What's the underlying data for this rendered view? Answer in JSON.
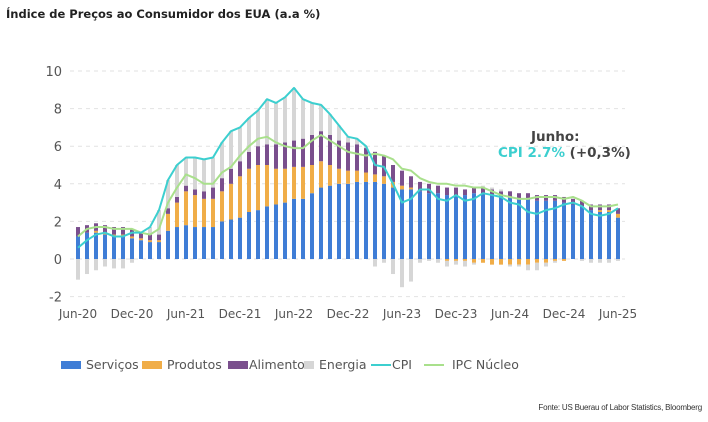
{
  "title": "Índice de Preços ao Consumidor dos EUA (a.a %)",
  "source": "Fonte: US Buerau of Labor Statistics, Bloomberg",
  "annotation": {
    "line1": "Junho:",
    "cpi": "CPI 2.7%",
    "change": "(+0,3%)"
  },
  "colors": {
    "services": "#3f7dd6",
    "products": "#f0ad48",
    "food": "#7a4f8d",
    "energy": "#d6d6d6",
    "cpi": "#3ccfcf",
    "core": "#a9e08c"
  },
  "legend": [
    "Serviços",
    "Produtos",
    "Alimentos",
    "Energia",
    "CPI",
    "IPC Núcleo"
  ],
  "chart_data": {
    "type": "bar",
    "stacked": true,
    "x_start": "Jun-20",
    "x_end": "Jun-25",
    "x_frequency": "monthly",
    "x_tick_labels": [
      "Jun-20",
      "Dec-20",
      "Jun-21",
      "Dec-21",
      "Jun-22",
      "Dec-22",
      "Jun-23",
      "Dec-23",
      "Jun-24",
      "Dec-24",
      "Jun-25"
    ],
    "y_ticks": [
      -2,
      0,
      2,
      4,
      6,
      8,
      10
    ],
    "ylim": [
      -2,
      10
    ],
    "grid": "horizontal dashed",
    "legend_position": "bottom",
    "series": [
      {
        "name": "Serviços",
        "type": "bar",
        "values": [
          1.2,
          1.4,
          1.4,
          1.3,
          1.2,
          1.2,
          1.1,
          1.0,
          0.9,
          0.9,
          1.5,
          1.7,
          1.8,
          1.7,
          1.7,
          1.7,
          2.0,
          2.1,
          2.2,
          2.5,
          2.6,
          2.8,
          2.9,
          3.0,
          3.2,
          3.2,
          3.5,
          3.8,
          3.9,
          4.0,
          4.0,
          4.1,
          4.1,
          4.1,
          4.0,
          3.8,
          3.7,
          3.7,
          3.6,
          3.5,
          3.5,
          3.4,
          3.4,
          3.4,
          3.5,
          3.5,
          3.4,
          3.3,
          3.3,
          3.2,
          3.2,
          3.1,
          3.1,
          3.1,
          3.0,
          2.9,
          2.8,
          2.6,
          2.5,
          2.5,
          2.2
        ]
      },
      {
        "name": "Produtos",
        "type": "bar",
        "values": [
          0.0,
          0.0,
          0.1,
          0.1,
          0.1,
          0.1,
          0.1,
          0.1,
          0.1,
          0.1,
          0.9,
          1.3,
          1.8,
          1.7,
          1.5,
          1.5,
          1.6,
          1.9,
          2.2,
          2.3,
          2.4,
          2.2,
          1.9,
          1.8,
          1.7,
          1.7,
          1.5,
          1.4,
          1.1,
          0.8,
          0.7,
          0.6,
          0.5,
          0.4,
          0.4,
          0.3,
          0.2,
          0.1,
          0.0,
          0.0,
          0.0,
          -0.1,
          -0.1,
          -0.1,
          -0.2,
          -0.2,
          -0.3,
          -0.3,
          -0.3,
          -0.3,
          -0.3,
          -0.2,
          -0.2,
          -0.1,
          -0.1,
          0.0,
          0.0,
          0.0,
          0.1,
          0.1,
          0.2
        ]
      },
      {
        "name": "Alimentos",
        "type": "bar",
        "values": [
          0.5,
          0.4,
          0.4,
          0.4,
          0.4,
          0.4,
          0.4,
          0.3,
          0.3,
          0.3,
          0.3,
          0.3,
          0.3,
          0.3,
          0.4,
          0.6,
          0.7,
          0.8,
          0.8,
          0.9,
          1.0,
          1.1,
          1.3,
          1.4,
          1.4,
          1.5,
          1.6,
          1.6,
          1.6,
          1.5,
          1.5,
          1.4,
          1.3,
          1.2,
          1.1,
          0.9,
          0.8,
          0.6,
          0.5,
          0.5,
          0.4,
          0.4,
          0.4,
          0.3,
          0.3,
          0.3,
          0.3,
          0.3,
          0.3,
          0.3,
          0.3,
          0.3,
          0.3,
          0.3,
          0.3,
          0.3,
          0.3,
          0.3,
          0.3,
          0.3,
          0.3
        ]
      },
      {
        "name": "Energia",
        "type": "bar",
        "values": [
          -1.1,
          -0.8,
          -0.6,
          -0.4,
          -0.5,
          -0.5,
          -0.2,
          0.0,
          0.4,
          1.3,
          1.5,
          1.7,
          1.5,
          1.7,
          1.7,
          1.6,
          1.9,
          2.0,
          1.8,
          1.8,
          1.9,
          2.4,
          2.2,
          2.4,
          2.8,
          2.1,
          1.7,
          1.4,
          1.1,
          0.8,
          0.3,
          0.3,
          0.1,
          -0.4,
          -0.2,
          -0.8,
          -1.5,
          -1.2,
          -0.2,
          -0.1,
          -0.2,
          -0.3,
          -0.2,
          -0.3,
          -0.1,
          0.1,
          0.1,
          0.1,
          -0.1,
          -0.1,
          -0.3,
          -0.4,
          -0.2,
          -0.1,
          0.0,
          0.0,
          -0.1,
          -0.2,
          -0.2,
          -0.2,
          -0.1
        ]
      },
      {
        "name": "CPI",
        "type": "line",
        "values": [
          0.6,
          1.0,
          1.3,
          1.4,
          1.2,
          1.2,
          1.4,
          1.4,
          1.7,
          2.6,
          4.2,
          5.0,
          5.4,
          5.4,
          5.3,
          5.4,
          6.2,
          6.8,
          7.0,
          7.5,
          7.9,
          8.5,
          8.3,
          8.6,
          9.1,
          8.5,
          8.3,
          8.2,
          7.7,
          7.1,
          6.5,
          6.4,
          6.0,
          5.0,
          4.9,
          4.0,
          3.0,
          3.2,
          3.7,
          3.7,
          3.2,
          3.1,
          3.4,
          3.1,
          3.2,
          3.5,
          3.4,
          3.3,
          3.0,
          2.9,
          2.5,
          2.4,
          2.6,
          2.7,
          2.9,
          3.0,
          2.8,
          2.4,
          2.3,
          2.4,
          2.7
        ]
      },
      {
        "name": "IPC Núcleo",
        "type": "line",
        "values": [
          1.2,
          1.6,
          1.7,
          1.7,
          1.6,
          1.6,
          1.6,
          1.4,
          1.3,
          1.6,
          3.0,
          3.8,
          4.5,
          4.3,
          4.0,
          4.0,
          4.6,
          4.9,
          5.5,
          6.0,
          6.4,
          6.5,
          6.2,
          6.0,
          5.9,
          5.9,
          6.3,
          6.6,
          6.3,
          6.0,
          5.7,
          5.6,
          5.5,
          5.6,
          5.5,
          5.3,
          4.8,
          4.7,
          4.3,
          4.1,
          4.0,
          4.0,
          3.9,
          3.9,
          3.8,
          3.8,
          3.6,
          3.4,
          3.3,
          3.2,
          3.2,
          3.3,
          3.3,
          3.3,
          3.2,
          3.3,
          3.1,
          2.8,
          2.8,
          2.8,
          2.9
        ]
      }
    ]
  }
}
